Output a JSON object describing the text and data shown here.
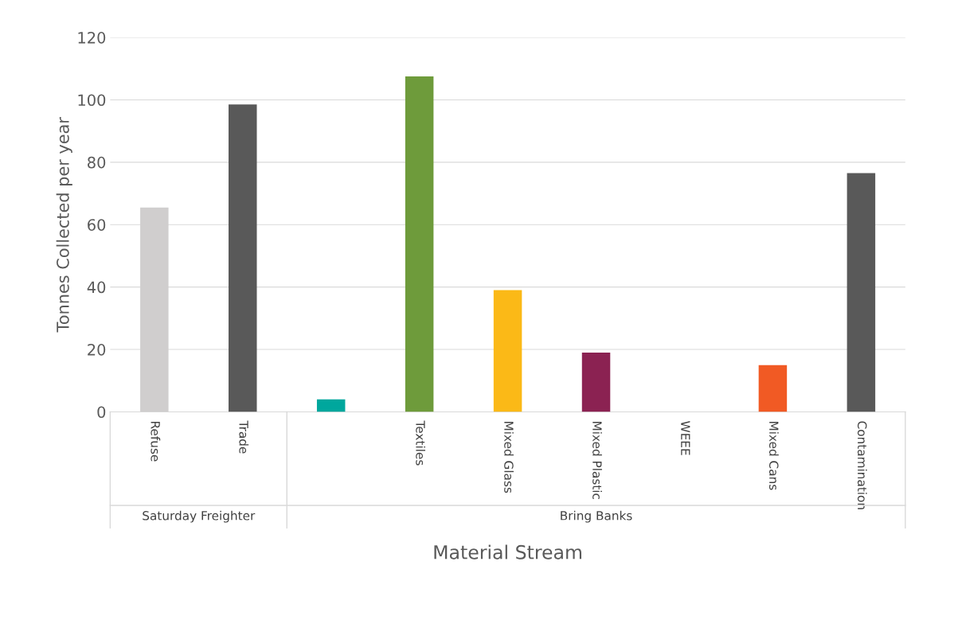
{
  "chart_data": {
    "type": "bar",
    "xlabel": "Material Stream",
    "ylabel": "Tonnes Collected per year",
    "categories": [
      "Refuse",
      "Trade",
      null,
      "Textiles",
      "Mixed Glass",
      "Mixed Plastic",
      "WEEE",
      "Mixed Cans",
      "Contamination"
    ],
    "values": [
      65.5,
      98.5,
      4,
      107.5,
      39,
      19,
      0,
      15,
      76.5
    ],
    "colors": [
      "#d0cece",
      "#595959",
      "#00a79d",
      "#6e9b3b",
      "#fbb917",
      "#8b2252",
      "#808080",
      "#f15a24",
      "#595959"
    ],
    "annotations": [
      "Saturday Freighter",
      "Bring Banks"
    ],
    "ylim": [
      0,
      120
    ],
    "yticks": [
      0,
      20,
      40,
      60,
      80,
      100,
      120
    ],
    "grid": "y",
    "legend": false
  }
}
